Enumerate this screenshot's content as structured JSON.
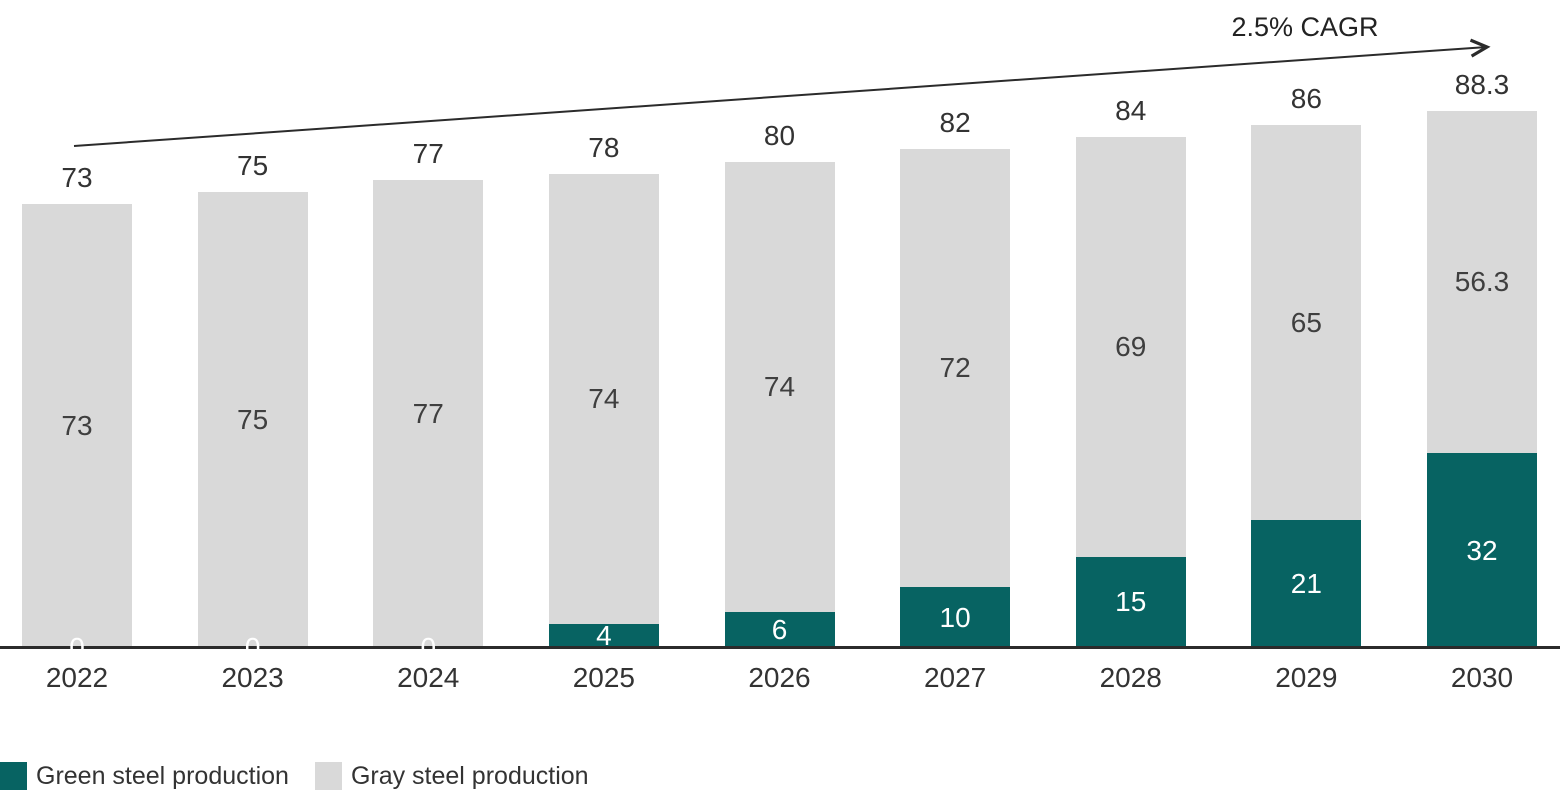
{
  "chart_data": {
    "type": "bar",
    "stacked": true,
    "title": "",
    "xlabel": "",
    "ylabel": "",
    "categories": [
      "2022",
      "2023",
      "2024",
      "2025",
      "2026",
      "2027",
      "2028",
      "2029",
      "2030"
    ],
    "series": [
      {
        "name": "Green steel production",
        "color": "#076362",
        "label_color": "#ffffff",
        "values": [
          0,
          0,
          0,
          4,
          6,
          10,
          15,
          21,
          32
        ]
      },
      {
        "name": "Gray steel production",
        "color": "#d9d9d9",
        "label_color": "#3f3f3f",
        "values": [
          73,
          75,
          77,
          74,
          74,
          72,
          69,
          65,
          56.3
        ]
      }
    ],
    "totals": [
      73,
      75,
      77,
      78,
      80,
      82,
      84,
      86,
      88.3
    ],
    "annotation": {
      "text": "2.5% CAGR"
    },
    "legend": [
      "Green steel production",
      "Gray steel production"
    ],
    "legend_position": "bottom-left",
    "grid": false,
    "ylim": [
      0,
      95
    ],
    "axis_color": "#2b2b2b",
    "text_color": "#333333"
  }
}
